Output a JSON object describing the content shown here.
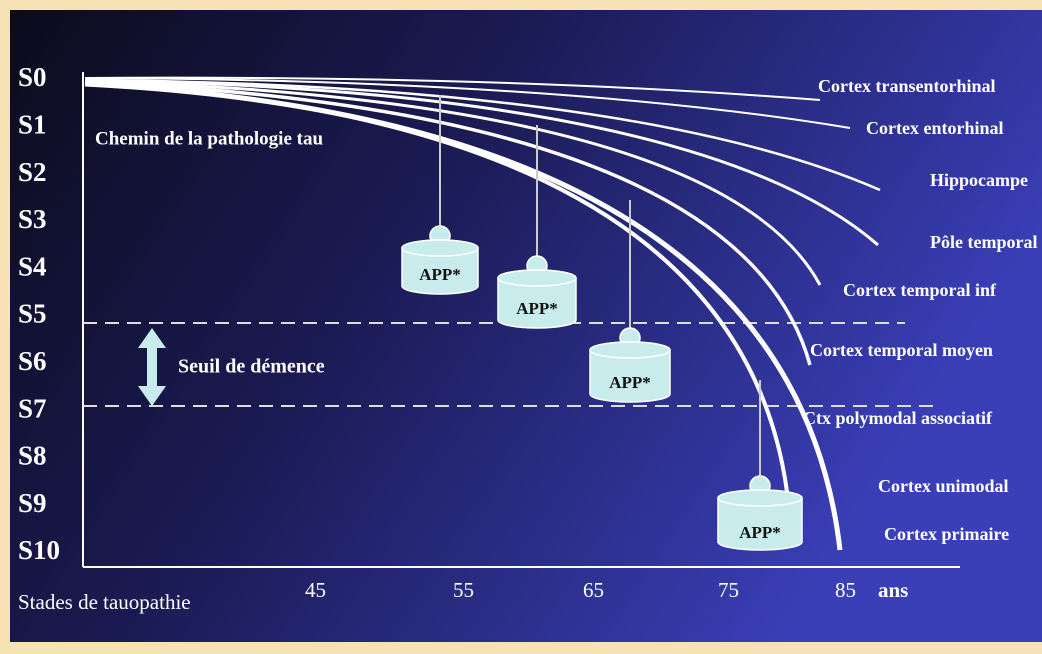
{
  "stages": [
    "S0",
    "S1",
    "S2",
    "S3",
    "S4",
    "S5",
    "S6",
    "S7",
    "S8",
    "S9",
    "S10"
  ],
  "x_axis": {
    "label": "Stades de tauopathie",
    "ticks": [
      "45",
      "55",
      "65",
      "75",
      "85"
    ],
    "unit": "ans"
  },
  "path_label": "Chemin de la pathologie tau",
  "threshold_label": "Seuil de démence",
  "regions": [
    "Cortex transentorhinal",
    "Cortex entorhinal",
    "Hippocampe",
    "Pôle temporal",
    "Cortex temporal inf",
    "Cortex temporal moyen",
    "Ctx polymodal associatif",
    "Cortex unimodal",
    "Cortex primaire"
  ],
  "app": [
    "APP*",
    "APP*",
    "APP*",
    "APP*"
  ]
}
